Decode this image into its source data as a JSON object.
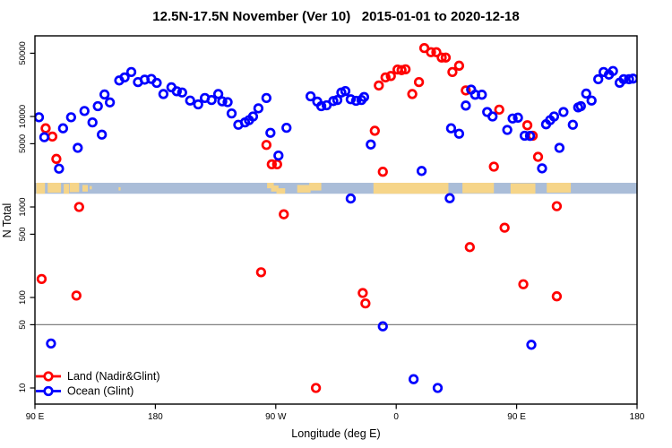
{
  "title": "12.5N-17.5N November (Ver 10)   2015-01-01 to 2020-12-18",
  "chart_data": {
    "type": "scatter",
    "title": "12.5N-17.5N November (Ver 10)   2015-01-01 to 2020-12-18",
    "xlabel": "Longitude (deg E)",
    "ylabel": "N Total",
    "x_axis": {
      "range_deg_east": [
        90,
        540
      ],
      "ticks": [
        {
          "value": 90,
          "label": "90 E"
        },
        {
          "value": 180,
          "label": "180"
        },
        {
          "value": 270,
          "label": "90 W"
        },
        {
          "value": 360,
          "label": "0"
        },
        {
          "value": 450,
          "label": "90 E"
        },
        {
          "value": 540,
          "label": "180"
        }
      ]
    },
    "y_axis": {
      "scale": "log",
      "range": [
        6.6,
        78000
      ],
      "ticks": [
        {
          "value": 10,
          "label": "10"
        },
        {
          "value": 50,
          "label": "50"
        },
        {
          "value": 100,
          "label": "100"
        },
        {
          "value": 500,
          "label": "500"
        },
        {
          "value": 1000,
          "label": "1000"
        },
        {
          "value": 5000,
          "label": "5000"
        },
        {
          "value": 10000,
          "label": "10000"
        },
        {
          "value": 50000,
          "label": "50000"
        }
      ]
    },
    "reference_line": {
      "value": 50,
      "color": "#808080"
    },
    "map_strip": {
      "ocean_color": "#aabdd8",
      "land_color": "#f6d589",
      "top_value": 1850,
      "bottom_value": 1400,
      "land_segments_deg": [
        {
          "x1": 91,
          "x2": 97.5,
          "t": 0,
          "b": 1
        },
        {
          "x1": 99.5,
          "x2": 109.5,
          "t": 0,
          "b": 0.9
        },
        {
          "x1": 111.5,
          "x2": 115.5,
          "t": 0.1,
          "b": 1
        },
        {
          "x1": 116,
          "x2": 123,
          "t": 0,
          "b": 0.85
        },
        {
          "x1": 125.5,
          "x2": 129.5,
          "t": 0.2,
          "b": 0.8
        },
        {
          "x1": 131,
          "x2": 132.5,
          "t": 0.3,
          "b": 0.6
        },
        {
          "x1": 152.5,
          "x2": 154,
          "t": 0.4,
          "b": 0.7
        },
        {
          "x1": 263.5,
          "x2": 268.5,
          "t": 0,
          "b": 0.5
        },
        {
          "x1": 266.5,
          "x2": 272,
          "t": 0.25,
          "b": 0.8
        },
        {
          "x1": 270.5,
          "x2": 277,
          "t": 0.5,
          "b": 1
        },
        {
          "x1": 286,
          "x2": 296,
          "t": 0.2,
          "b": 0.9
        },
        {
          "x1": 295,
          "x2": 304,
          "t": 0,
          "b": 0.7
        },
        {
          "x1": 343,
          "x2": 399,
          "t": 0,
          "b": 1
        },
        {
          "x1": 409.5,
          "x2": 433,
          "t": 0,
          "b": 0.95
        },
        {
          "x1": 445.5,
          "x2": 464,
          "t": 0.05,
          "b": 1
        },
        {
          "x1": 472.5,
          "x2": 490.5,
          "t": 0,
          "b": 0.9
        }
      ]
    },
    "legend": {
      "position": "bottom-left",
      "entries": [
        {
          "label": "Land (Nadir&Glint)",
          "color": "#ff0000"
        },
        {
          "label": "Ocean (Glint)",
          "color": "#0000ff"
        }
      ]
    },
    "series": [
      {
        "name": "Land (Nadir&Glint)",
        "color": "#ff0000",
        "marker": "open-circle",
        "points": [
          [
            95,
            160
          ],
          [
            98,
            7400
          ],
          [
            103,
            6000
          ],
          [
            106,
            3400
          ],
          [
            121,
            105
          ],
          [
            123,
            1000
          ],
          [
            259,
            190
          ],
          [
            263,
            4850
          ],
          [
            267,
            2960
          ],
          [
            271,
            2960
          ],
          [
            276,
            830
          ],
          [
            300,
            10
          ],
          [
            335,
            112
          ],
          [
            337,
            86
          ],
          [
            344,
            6950
          ],
          [
            347,
            22000
          ],
          [
            350,
            2450
          ],
          [
            352,
            27000
          ],
          [
            356,
            28000
          ],
          [
            361,
            33000
          ],
          [
            364,
            32500
          ],
          [
            367,
            33200
          ],
          [
            372,
            17700
          ],
          [
            377,
            24000
          ],
          [
            381,
            57000
          ],
          [
            386,
            51300
          ],
          [
            390,
            51300
          ],
          [
            394,
            44800
          ],
          [
            397,
            44800
          ],
          [
            402,
            31000
          ],
          [
            407,
            36400
          ],
          [
            412,
            19400
          ],
          [
            415,
            360
          ],
          [
            433,
            2790
          ],
          [
            437,
            11900
          ],
          [
            441,
            590
          ],
          [
            455,
            140
          ],
          [
            458,
            8000
          ],
          [
            462,
            6130
          ],
          [
            466,
            3580
          ],
          [
            480,
            1020
          ],
          [
            480,
            103
          ]
        ]
      },
      {
        "name": "Ocean (Glint)",
        "color": "#0000ff",
        "marker": "open-circle",
        "points": [
          [
            93,
            9800
          ],
          [
            97,
            5900
          ],
          [
            102,
            31
          ],
          [
            108,
            2650
          ],
          [
            111,
            7400
          ],
          [
            117,
            9800
          ],
          [
            122,
            4500
          ],
          [
            127,
            11500
          ],
          [
            133,
            8600
          ],
          [
            137,
            13000
          ],
          [
            140,
            6300
          ],
          [
            142,
            17500
          ],
          [
            146,
            14300
          ],
          [
            153,
            25000
          ],
          [
            157,
            27000
          ],
          [
            162,
            31000
          ],
          [
            167,
            24000
          ],
          [
            172,
            25500
          ],
          [
            177,
            26000
          ],
          [
            181,
            23500
          ],
          [
            186,
            17700
          ],
          [
            192,
            21000
          ],
          [
            196,
            19000
          ],
          [
            200,
            18400
          ],
          [
            206,
            15000
          ],
          [
            212,
            13600
          ],
          [
            217,
            16000
          ],
          [
            222,
            15200
          ],
          [
            227,
            17700
          ],
          [
            230,
            14700
          ],
          [
            234,
            14400
          ],
          [
            237,
            10800
          ],
          [
            242,
            8100
          ],
          [
            247,
            8600
          ],
          [
            250,
            9100
          ],
          [
            253,
            10000
          ],
          [
            257,
            12300
          ],
          [
            263,
            16000
          ],
          [
            266,
            6600
          ],
          [
            272,
            3700
          ],
          [
            278,
            7500
          ],
          [
            296,
            16700
          ],
          [
            301,
            14600
          ],
          [
            304,
            13000
          ],
          [
            308,
            13300
          ],
          [
            313,
            14800
          ],
          [
            316,
            15200
          ],
          [
            319,
            18400
          ],
          [
            322,
            19100
          ],
          [
            326,
            15500
          ],
          [
            326,
            1240
          ],
          [
            330,
            14900
          ],
          [
            334,
            15200
          ],
          [
            336,
            16400
          ],
          [
            341,
            4900
          ],
          [
            350,
            48
          ],
          [
            373,
            12.5
          ],
          [
            379,
            2500
          ],
          [
            391,
            10
          ],
          [
            400,
            1250
          ],
          [
            401,
            7400
          ],
          [
            407,
            6450
          ],
          [
            412,
            13200
          ],
          [
            416,
            19800
          ],
          [
            419,
            17400
          ],
          [
            424,
            17400
          ],
          [
            428,
            11200
          ],
          [
            432,
            10000
          ],
          [
            443,
            7100
          ],
          [
            447,
            9500
          ],
          [
            451,
            9700
          ],
          [
            456,
            6130
          ],
          [
            460,
            6100
          ],
          [
            461,
            30
          ],
          [
            469,
            2670
          ],
          [
            472,
            8200
          ],
          [
            475,
            9100
          ],
          [
            478,
            10000
          ],
          [
            482,
            4500
          ],
          [
            485,
            11200
          ],
          [
            492,
            8100
          ],
          [
            496,
            12600
          ],
          [
            498,
            13000
          ],
          [
            502,
            17900
          ],
          [
            506,
            15000
          ],
          [
            511,
            25800
          ],
          [
            515,
            31000
          ],
          [
            519,
            29000
          ],
          [
            522,
            31800
          ],
          [
            527,
            23600
          ],
          [
            530,
            25800
          ],
          [
            534,
            25800
          ],
          [
            537,
            26200
          ]
        ]
      }
    ]
  }
}
